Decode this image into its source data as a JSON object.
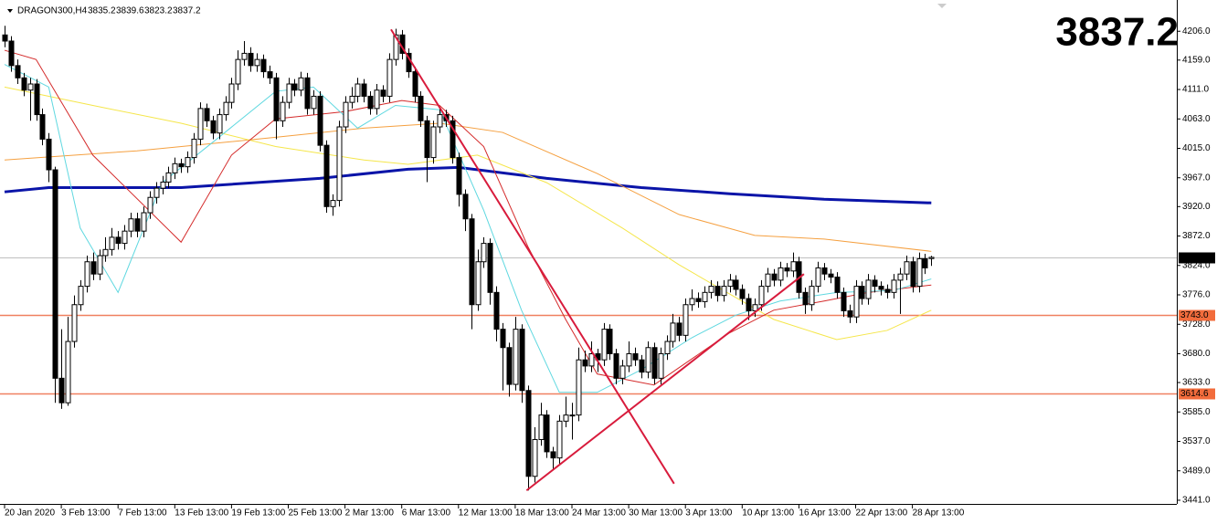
{
  "chart_data": {
    "type": "candlestick",
    "symbol": "DRAGON300,H4",
    "ylim": [
      3435,
      4257
    ],
    "yticks": [
      {
        "value": 4206,
        "label": "4206.0"
      },
      {
        "value": 4159,
        "label": "4159.0"
      },
      {
        "value": 4111,
        "label": "4111.0"
      },
      {
        "value": 4063,
        "label": "4063.0"
      },
      {
        "value": 4015,
        "label": "4015.0"
      },
      {
        "value": 3967,
        "label": "3967.0"
      },
      {
        "value": 3920,
        "label": "3920.0"
      },
      {
        "value": 3872,
        "label": "3872.0"
      },
      {
        "value": 3824,
        "label": "3824.0"
      },
      {
        "value": 3776,
        "label": "3776.0"
      },
      {
        "value": 3728,
        "label": "3728.0"
      },
      {
        "value": 3680,
        "label": "3680.0"
      },
      {
        "value": 3633,
        "label": "3633.0"
      },
      {
        "value": 3585,
        "label": "3585.0"
      },
      {
        "value": 3537,
        "label": "3537.0"
      },
      {
        "value": 3489,
        "label": "3489.0"
      },
      {
        "value": 3441,
        "label": "3441.0"
      }
    ],
    "categories": [
      "20 Jan 2020",
      null,
      null,
      null,
      null,
      null,
      null,
      null,
      null,
      "3 Feb 13:00",
      null,
      null,
      null,
      null,
      null,
      null,
      null,
      null,
      "7 Feb 13:00",
      null,
      null,
      null,
      null,
      null,
      null,
      null,
      null,
      "13 Feb 13:00",
      null,
      null,
      null,
      null,
      null,
      null,
      null,
      null,
      "19 Feb 13:00",
      null,
      null,
      null,
      null,
      null,
      null,
      null,
      null,
      "25 Feb 13:00",
      null,
      null,
      null,
      null,
      null,
      null,
      null,
      null,
      "2 Mar 13:00",
      null,
      null,
      null,
      null,
      null,
      null,
      null,
      null,
      "6 Mar 13:00",
      null,
      null,
      null,
      null,
      null,
      null,
      null,
      null,
      "12 Mar 13:00",
      null,
      null,
      null,
      null,
      null,
      null,
      null,
      null,
      "18 Mar 13:00",
      null,
      null,
      null,
      null,
      null,
      null,
      null,
      null,
      "24 Mar 13:00",
      null,
      null,
      null,
      null,
      null,
      null,
      null,
      null,
      "30 Mar 13:00",
      null,
      null,
      null,
      null,
      null,
      null,
      null,
      null,
      "3 Apr 13:00",
      null,
      null,
      null,
      null,
      null,
      null,
      null,
      null,
      "10 Apr 13:00",
      null,
      null,
      null,
      null,
      null,
      null,
      null,
      null,
      "16 Apr 13:00",
      null,
      null,
      null,
      null,
      null,
      null,
      null,
      null,
      "22 Apr 13:00",
      null,
      null,
      null,
      null,
      null,
      null,
      null,
      null,
      "28 Apr 13:00",
      null,
      null,
      null
    ],
    "candles": [
      [
        4200,
        4215,
        4180,
        4190
      ],
      [
        4190,
        4198,
        4140,
        4150
      ],
      [
        4150,
        4160,
        4120,
        4130
      ],
      [
        4130,
        4138,
        4100,
        4110
      ],
      [
        4110,
        4130,
        4060,
        4120
      ],
      [
        4120,
        4128,
        4060,
        4070
      ],
      [
        4070,
        4080,
        4020,
        4030
      ],
      [
        4030,
        4040,
        3960,
        3980
      ],
      [
        3980,
        3985,
        3600,
        3640
      ],
      [
        3640,
        3720,
        3590,
        3600
      ],
      [
        3600,
        3740,
        3595,
        3700
      ],
      [
        3700,
        3775,
        3690,
        3760
      ],
      [
        3760,
        3800,
        3750,
        3790
      ],
      [
        3790,
        3840,
        3780,
        3830
      ],
      [
        3830,
        3845,
        3800,
        3810
      ],
      [
        3810,
        3850,
        3800,
        3840
      ],
      [
        3840,
        3870,
        3830,
        3850
      ],
      [
        3850,
        3885,
        3840,
        3870
      ],
      [
        3870,
        3880,
        3850,
        3860
      ],
      [
        3860,
        3890,
        3850,
        3880
      ],
      [
        3880,
        3910,
        3870,
        3900
      ],
      [
        3900,
        3910,
        3870,
        3880
      ],
      [
        3880,
        3920,
        3870,
        3910
      ],
      [
        3910,
        3945,
        3900,
        3935
      ],
      [
        3935,
        3960,
        3925,
        3950
      ],
      [
        3950,
        3970,
        3940,
        3960
      ],
      [
        3960,
        3985,
        3950,
        3975
      ],
      [
        3975,
        4000,
        3965,
        3990
      ],
      [
        3990,
        3998,
        3975,
        3985
      ],
      [
        3985,
        4010,
        3975,
        4000
      ],
      [
        4000,
        4040,
        3990,
        4030
      ],
      [
        4030,
        4090,
        4020,
        4080
      ],
      [
        4080,
        4088,
        4050,
        4060
      ],
      [
        4060,
        4068,
        4030,
        4040
      ],
      [
        4040,
        4080,
        4030,
        4070
      ],
      [
        4070,
        4100,
        4060,
        4090
      ],
      [
        4090,
        4130,
        4080,
        4120
      ],
      [
        4120,
        4175,
        4110,
        4160
      ],
      [
        4160,
        4190,
        4150,
        4170
      ],
      [
        4170,
        4180,
        4140,
        4150
      ],
      [
        4150,
        4170,
        4140,
        4160
      ],
      [
        4160,
        4168,
        4130,
        4140
      ],
      [
        4140,
        4150,
        4120,
        4130
      ],
      [
        4130,
        4138,
        4030,
        4060
      ],
      [
        4060,
        4100,
        4050,
        4090
      ],
      [
        4090,
        4130,
        4080,
        4120
      ],
      [
        4120,
        4128,
        4100,
        4110
      ],
      [
        4110,
        4140,
        4100,
        4130
      ],
      [
        4130,
        4138,
        4070,
        4080
      ],
      [
        4080,
        4110,
        4070,
        4100
      ],
      [
        4100,
        4108,
        4010,
        4020
      ],
      [
        4020,
        4028,
        3910,
        3920
      ],
      [
        3920,
        3940,
        3905,
        3930
      ],
      [
        3930,
        4060,
        3920,
        4050
      ],
      [
        4050,
        4100,
        4040,
        4090
      ],
      [
        4090,
        4115,
        4080,
        4100
      ],
      [
        4100,
        4130,
        4090,
        4120
      ],
      [
        4120,
        4128,
        4090,
        4100
      ],
      [
        4100,
        4108,
        4070,
        4080
      ],
      [
        4080,
        4120,
        4070,
        4110
      ],
      [
        4110,
        4118,
        4090,
        4100
      ],
      [
        4100,
        4170,
        4090,
        4160
      ],
      [
        4160,
        4210,
        4150,
        4200
      ],
      [
        4200,
        4208,
        4160,
        4170
      ],
      [
        4170,
        4178,
        4130,
        4140
      ],
      [
        4140,
        4148,
        4090,
        4100
      ],
      [
        4100,
        4108,
        4050,
        4060
      ],
      [
        4060,
        4068,
        3960,
        4000
      ],
      [
        4000,
        4060,
        3990,
        4050
      ],
      [
        4050,
        4080,
        4040,
        4070
      ],
      [
        4070,
        4078,
        4050,
        4060
      ],
      [
        4060,
        4068,
        3990,
        4000
      ],
      [
        4000,
        4008,
        3920,
        3940
      ],
      [
        3940,
        3948,
        3880,
        3900
      ],
      [
        3900,
        3908,
        3720,
        3760
      ],
      [
        3760,
        3850,
        3750,
        3830
      ],
      [
        3830,
        3870,
        3820,
        3860
      ],
      [
        3860,
        3868,
        3760,
        3780
      ],
      [
        3780,
        3790,
        3700,
        3720
      ],
      [
        3720,
        3730,
        3620,
        3690
      ],
      [
        3690,
        3698,
        3610,
        3630
      ],
      [
        3630,
        3740,
        3620,
        3720
      ],
      [
        3720,
        3728,
        3600,
        3620
      ],
      [
        3620,
        3628,
        3457,
        3480
      ],
      [
        3480,
        3560,
        3470,
        3540
      ],
      [
        3540,
        3600,
        3530,
        3580
      ],
      [
        3580,
        3588,
        3510,
        3520
      ],
      [
        3520,
        3528,
        3490,
        3510
      ],
      [
        3510,
        3580,
        3500,
        3570
      ],
      [
        3570,
        3610,
        3560,
        3580
      ],
      [
        3580,
        3600,
        3540,
        3580
      ],
      [
        3580,
        3690,
        3570,
        3670
      ],
      [
        3670,
        3685,
        3650,
        3660
      ],
      [
        3660,
        3700,
        3650,
        3680
      ],
      [
        3680,
        3688,
        3650,
        3670
      ],
      [
        3670,
        3730,
        3660,
        3720
      ],
      [
        3720,
        3728,
        3670,
        3680
      ],
      [
        3680,
        3688,
        3630,
        3640
      ],
      [
        3640,
        3670,
        3630,
        3660
      ],
      [
        3660,
        3700,
        3650,
        3680
      ],
      [
        3680,
        3690,
        3660,
        3670
      ],
      [
        3670,
        3678,
        3640,
        3650
      ],
      [
        3650,
        3700,
        3640,
        3690
      ],
      [
        3690,
        3698,
        3630,
        3640
      ],
      [
        3640,
        3690,
        3630,
        3680
      ],
      [
        3680,
        3710,
        3670,
        3700
      ],
      [
        3700,
        3745,
        3690,
        3730
      ],
      [
        3730,
        3740,
        3700,
        3710
      ],
      [
        3710,
        3770,
        3700,
        3760
      ],
      [
        3760,
        3785,
        3750,
        3770
      ],
      [
        3770,
        3780,
        3755,
        3765
      ],
      [
        3765,
        3790,
        3755,
        3780
      ],
      [
        3780,
        3800,
        3770,
        3790
      ],
      [
        3790,
        3798,
        3765,
        3775
      ],
      [
        3775,
        3800,
        3765,
        3790
      ],
      [
        3790,
        3810,
        3780,
        3800
      ],
      [
        3800,
        3808,
        3775,
        3785
      ],
      [
        3785,
        3793,
        3760,
        3770
      ],
      [
        3770,
        3778,
        3735,
        3750
      ],
      [
        3750,
        3770,
        3740,
        3760
      ],
      [
        3760,
        3800,
        3750,
        3790
      ],
      [
        3790,
        3820,
        3780,
        3810
      ],
      [
        3810,
        3818,
        3790,
        3800
      ],
      [
        3800,
        3830,
        3790,
        3820
      ],
      [
        3820,
        3828,
        3805,
        3815
      ],
      [
        3815,
        3845,
        3805,
        3830
      ],
      [
        3830,
        3838,
        3770,
        3780
      ],
      [
        3780,
        3788,
        3745,
        3760
      ],
      [
        3760,
        3800,
        3750,
        3790
      ],
      [
        3790,
        3830,
        3780,
        3820
      ],
      [
        3820,
        3828,
        3800,
        3810
      ],
      [
        3810,
        3818,
        3795,
        3805
      ],
      [
        3805,
        3813,
        3770,
        3780
      ],
      [
        3780,
        3788,
        3740,
        3750
      ],
      [
        3750,
        3760,
        3730,
        3740
      ],
      [
        3740,
        3800,
        3730,
        3790
      ],
      [
        3790,
        3798,
        3760,
        3770
      ],
      [
        3770,
        3810,
        3760,
        3800
      ],
      [
        3800,
        3808,
        3780,
        3790
      ],
      [
        3790,
        3798,
        3775,
        3785
      ],
      [
        3785,
        3793,
        3770,
        3780
      ],
      [
        3780,
        3810,
        3770,
        3800
      ],
      [
        3800,
        3820,
        3745,
        3810
      ],
      [
        3810,
        3840,
        3800,
        3830
      ],
      [
        3830,
        3838,
        3780,
        3790
      ],
      [
        3790,
        3845,
        3780,
        3835
      ],
      [
        3835,
        3843,
        3810,
        3820
      ],
      [
        3835.2,
        3839.6,
        3823.2,
        3837.2
      ]
    ],
    "moving_averages": [
      {
        "color": "#0a14a8",
        "width": 3,
        "x": [
          0,
          7,
          28,
          50,
          64,
          72,
          86,
          101,
          115,
          130,
          147
        ],
        "values": [
          3944,
          3951,
          3951,
          3966,
          3981,
          3984,
          3966,
          3951,
          3941,
          3932,
          3926
        ]
      },
      {
        "color": "#f5a040",
        "width": 1,
        "x": [
          0,
          21,
          43,
          57,
          69,
          79,
          94,
          107,
          119,
          130,
          147
        ],
        "values": [
          3996,
          4011,
          4033,
          4048,
          4056,
          4041,
          3974,
          3907,
          3873,
          3867,
          3847
        ]
      },
      {
        "color": "#f5e64a",
        "width": 1,
        "x": [
          0,
          14,
          28,
          43,
          57,
          64,
          75,
          86,
          98,
          107,
          122,
          132,
          140,
          147
        ],
        "values": [
          4115,
          4085,
          4056,
          4018,
          3996,
          3989,
          4004,
          3959,
          3885,
          3825,
          3736,
          3703,
          3718,
          3751
        ]
      },
      {
        "color": "#d42a2a",
        "width": 1,
        "x": [
          0,
          5,
          14,
          28,
          36,
          43,
          54,
          63,
          69,
          76,
          83,
          89,
          94,
          103,
          115,
          122,
          130,
          137,
          147
        ],
        "values": [
          4175,
          4160,
          4004,
          3862,
          4004,
          4063,
          4075,
          4093,
          4085,
          4018,
          3855,
          3736,
          3647,
          3629,
          3714,
          3751,
          3766,
          3780,
          3792
        ]
      },
      {
        "color": "#5fd8e0",
        "width": 1,
        "x": [
          0,
          7,
          12,
          18,
          25,
          34,
          43,
          49,
          56,
          62,
          69,
          76,
          82,
          88,
          94,
          101,
          109,
          116,
          123,
          132,
          141,
          147
        ],
        "values": [
          4152,
          4115,
          3885,
          3780,
          3959,
          4033,
          4108,
          4115,
          4048,
          4085,
          4078,
          3914,
          3751,
          3617,
          3617,
          3654,
          3706,
          3743,
          3766,
          3780,
          3783,
          3802
        ]
      }
    ],
    "trendlines": [
      {
        "color": "#d81b3c",
        "x": [
          61.3,
          106.2
        ],
        "values": [
          4209,
          3468
        ]
      },
      {
        "color": "#d81b3c",
        "x": [
          82.8,
          126.8
        ],
        "values": [
          3457,
          3810
        ]
      }
    ],
    "levels": [
      {
        "value": 3743,
        "label": "3743.0",
        "color": "#f08060"
      },
      {
        "value": 3614.6,
        "label": "3614.6",
        "color": "#f08060"
      }
    ],
    "current_color": "#84e21e"
  }
}
